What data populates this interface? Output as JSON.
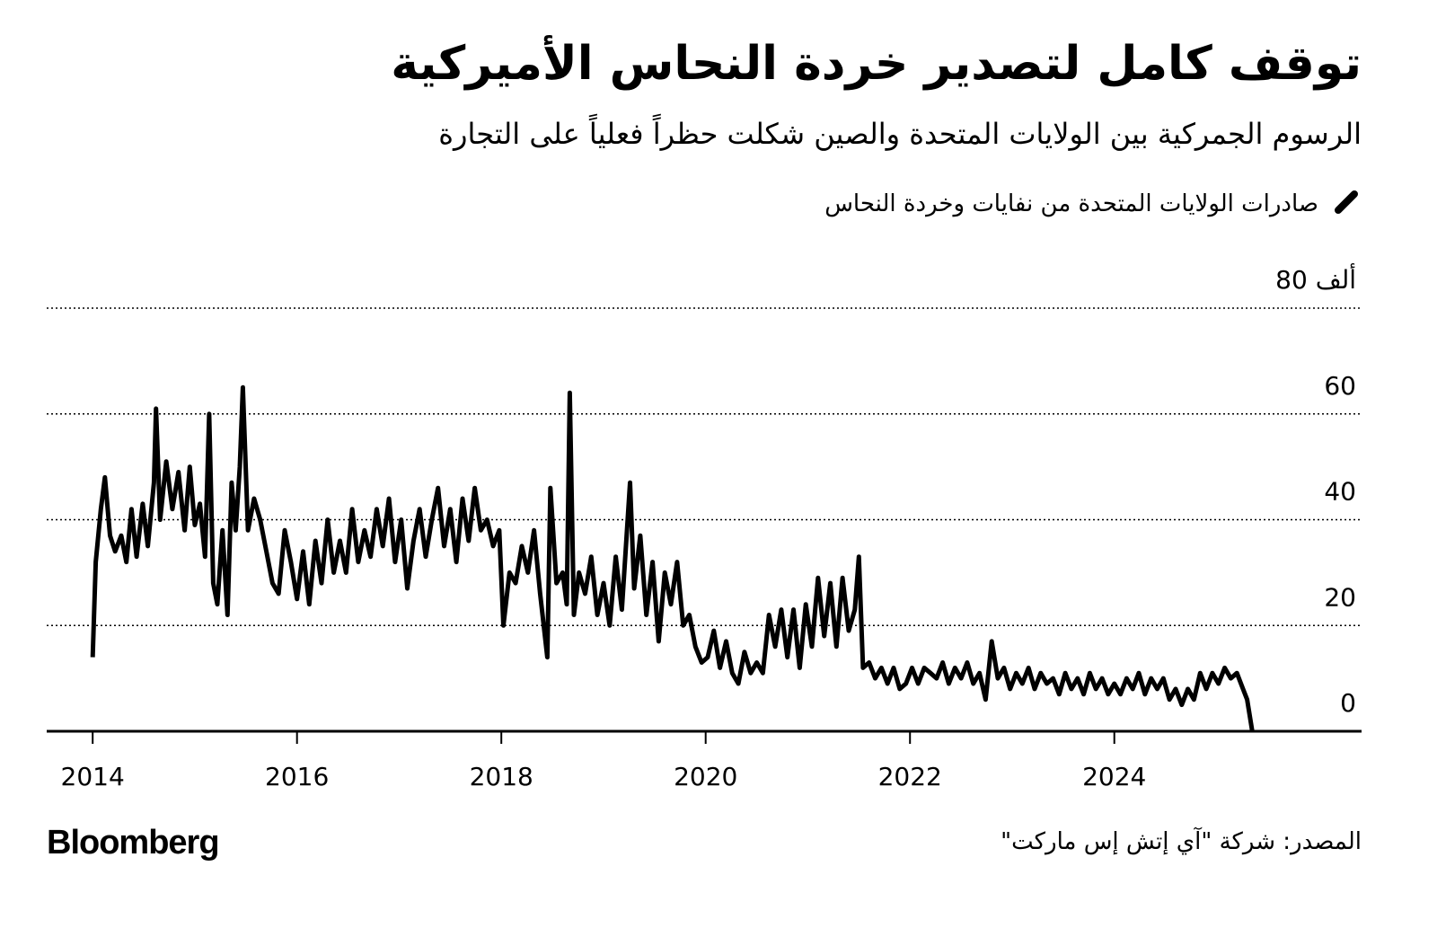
{
  "chart_data": {
    "type": "line",
    "title": "توقف كامل لتصدير خردة النحاس الأميركية",
    "subtitle": "الرسوم الجمركية بين الولايات المتحدة والصين شكلت حظراً فعلياً على التجارة",
    "source": "المصدر: شركة \"آي إتش إس ماركت\"",
    "brand": "Bloomberg",
    "xlim": [
      2013.55,
      2026.42
    ],
    "xticks": [
      2014,
      2016,
      2018,
      2020,
      2022,
      2024
    ],
    "ylim": [
      0,
      80
    ],
    "yticks": [
      0,
      20,
      40,
      60,
      {
        "value": 80,
        "label": "80 ألف"
      }
    ],
    "grid": true,
    "x": [
      2014.0,
      2014.03,
      2014.08,
      2014.12,
      2014.17,
      2014.22,
      2014.28,
      2014.33,
      2014.38,
      2014.43,
      2014.49,
      2014.54,
      2014.6,
      2014.62,
      2014.66,
      2014.72,
      2014.78,
      2014.84,
      2014.9,
      2014.95,
      2015.0,
      2015.05,
      2015.1,
      2015.14,
      2015.18,
      2015.22,
      2015.27,
      2015.32,
      2015.36,
      2015.4,
      2015.44,
      2015.47,
      2015.52,
      2015.58,
      2015.64,
      2015.7,
      2015.76,
      2015.82,
      2015.88,
      2015.94,
      2016.0,
      2016.06,
      2016.12,
      2016.18,
      2016.24,
      2016.3,
      2016.36,
      2016.42,
      2016.48,
      2016.54,
      2016.6,
      2016.66,
      2016.72,
      2016.78,
      2016.84,
      2016.9,
      2016.96,
      2017.02,
      2017.08,
      2017.14,
      2017.2,
      2017.26,
      2017.32,
      2017.38,
      2017.44,
      2017.5,
      2017.56,
      2017.62,
      2017.68,
      2017.74,
      2017.8,
      2017.86,
      2017.92,
      2017.98,
      2018.02,
      2018.08,
      2018.14,
      2018.2,
      2018.26,
      2018.32,
      2018.38,
      2018.45,
      2018.48,
      2018.54,
      2018.6,
      2018.64,
      2018.67,
      2018.71,
      2018.76,
      2018.82,
      2018.88,
      2018.94,
      2019.0,
      2019.06,
      2019.12,
      2019.18,
      2019.26,
      2019.3,
      2019.36,
      2019.42,
      2019.48,
      2019.54,
      2019.6,
      2019.66,
      2019.72,
      2019.78,
      2019.84,
      2019.9,
      2019.96,
      2020.02,
      2020.08,
      2020.14,
      2020.2,
      2020.26,
      2020.32,
      2020.38,
      2020.44,
      2020.5,
      2020.56,
      2020.62,
      2020.68,
      2020.74,
      2020.8,
      2020.86,
      2020.92,
      2020.98,
      2021.04,
      2021.1,
      2021.16,
      2021.22,
      2021.28,
      2021.34,
      2021.4,
      2021.46,
      2021.5,
      2021.54,
      2021.6,
      2021.66,
      2021.72,
      2021.78,
      2021.84,
      2021.9,
      2021.96,
      2022.02,
      2022.08,
      2022.14,
      2022.2,
      2022.26,
      2022.32,
      2022.38,
      2022.44,
      2022.5,
      2022.56,
      2022.62,
      2022.68,
      2022.74,
      2022.8,
      2022.86,
      2022.92,
      2022.98,
      2023.04,
      2023.1,
      2023.16,
      2023.22,
      2023.28,
      2023.34,
      2023.4,
      2023.46,
      2023.52,
      2023.58,
      2023.64,
      2023.7,
      2023.76,
      2023.82,
      2023.88,
      2023.94,
      2024.0,
      2024.06,
      2024.12,
      2024.18,
      2024.24,
      2024.3,
      2024.36,
      2024.42,
      2024.48,
      2024.54,
      2024.6,
      2024.66,
      2024.72,
      2024.78,
      2024.84,
      2024.9,
      2024.96,
      2025.02,
      2025.08,
      2025.14,
      2025.2,
      2025.26,
      2025.3,
      2025.35
    ],
    "series": [
      {
        "name": "صادرات الولايات المتحدة من نفايات وخردة النحاس",
        "color": "#000000",
        "values": [
          14,
          32,
          42,
          48,
          37,
          34,
          37,
          32,
          42,
          33,
          43,
          35,
          47,
          61,
          40,
          51,
          42,
          49,
          38,
          50,
          39,
          43,
          33,
          60,
          28,
          24,
          38,
          22,
          47,
          38,
          50,
          65,
          38,
          44,
          40,
          34,
          28,
          26,
          38,
          32,
          25,
          34,
          24,
          36,
          28,
          40,
          30,
          36,
          30,
          42,
          32,
          38,
          33,
          42,
          35,
          44,
          32,
          40,
          27,
          36,
          42,
          33,
          40,
          46,
          35,
          42,
          32,
          44,
          36,
          46,
          38,
          40,
          35,
          38,
          20,
          30,
          28,
          35,
          30,
          38,
          26,
          14,
          46,
          28,
          30,
          24,
          64,
          22,
          30,
          26,
          33,
          22,
          28,
          20,
          33,
          23,
          47,
          27,
          37,
          22,
          32,
          17,
          30,
          24,
          32,
          20,
          22,
          16,
          13,
          14,
          19,
          12,
          17,
          11,
          9,
          15,
          11,
          13,
          11,
          22,
          16,
          23,
          14,
          23,
          12,
          24,
          16,
          29,
          18,
          28,
          16,
          29,
          19,
          23,
          33,
          12,
          13,
          10,
          12,
          9,
          12,
          8,
          9,
          12,
          9,
          12,
          11,
          10,
          13,
          9,
          12,
          10,
          13,
          9,
          11,
          6,
          17,
          10,
          12,
          8,
          11,
          9,
          12,
          8,
          11,
          9,
          10,
          7,
          11,
          8,
          10,
          7,
          11,
          8,
          10,
          7,
          9,
          7,
          10,
          8,
          11,
          7,
          10,
          8,
          10,
          6,
          8,
          5,
          8,
          6,
          11,
          8,
          11,
          9,
          12,
          10,
          11,
          8,
          6,
          0
        ]
      }
    ]
  }
}
